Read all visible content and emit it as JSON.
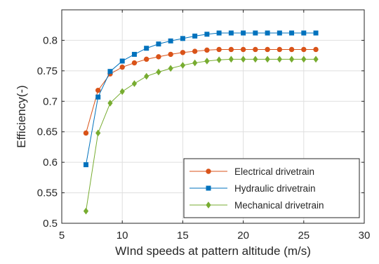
{
  "chart_data": {
    "type": "line",
    "title": "",
    "xlabel": "WInd speeds at pattern altitude (m/s)",
    "ylabel": "Efficiency(-)",
    "xlim": [
      5,
      30
    ],
    "ylim": [
      0.5,
      0.85
    ],
    "xticks": [
      5,
      10,
      15,
      20,
      25,
      30
    ],
    "yticks": [
      0.5,
      0.55,
      0.6,
      0.65,
      0.7,
      0.75,
      0.8
    ],
    "xtick_labels": [
      "5",
      "10",
      "15",
      "20",
      "25",
      "30"
    ],
    "ytick_labels": [
      "0.5",
      "0.55",
      "0.6",
      "0.65",
      "0.7",
      "0.75",
      "0.8"
    ],
    "grid": true,
    "legend_position": "bottom-right",
    "x": [
      7,
      8,
      9,
      10,
      11,
      12,
      13,
      14,
      15,
      16,
      17,
      18,
      19,
      20,
      21,
      22,
      23,
      24,
      25,
      26
    ],
    "series": [
      {
        "name": "Electrical drivetrain",
        "color": "#d95319",
        "marker": "circle",
        "values": [
          0.648,
          0.718,
          0.745,
          0.756,
          0.763,
          0.769,
          0.773,
          0.777,
          0.78,
          0.782,
          0.784,
          0.785,
          0.785,
          0.785,
          0.785,
          0.785,
          0.785,
          0.785,
          0.785,
          0.785
        ]
      },
      {
        "name": "Hydraulic drivetrain",
        "color": "#0072bd",
        "marker": "square",
        "values": [
          0.596,
          0.707,
          0.749,
          0.766,
          0.777,
          0.787,
          0.794,
          0.799,
          0.803,
          0.807,
          0.81,
          0.812,
          0.812,
          0.812,
          0.812,
          0.812,
          0.812,
          0.812,
          0.812,
          0.812
        ]
      },
      {
        "name": "Mechanical drivetrain",
        "color": "#77ac30",
        "marker": "diamond",
        "values": [
          0.52,
          0.648,
          0.697,
          0.716,
          0.729,
          0.741,
          0.748,
          0.754,
          0.759,
          0.763,
          0.766,
          0.768,
          0.769,
          0.769,
          0.769,
          0.769,
          0.769,
          0.769,
          0.769,
          0.769
        ]
      }
    ]
  }
}
